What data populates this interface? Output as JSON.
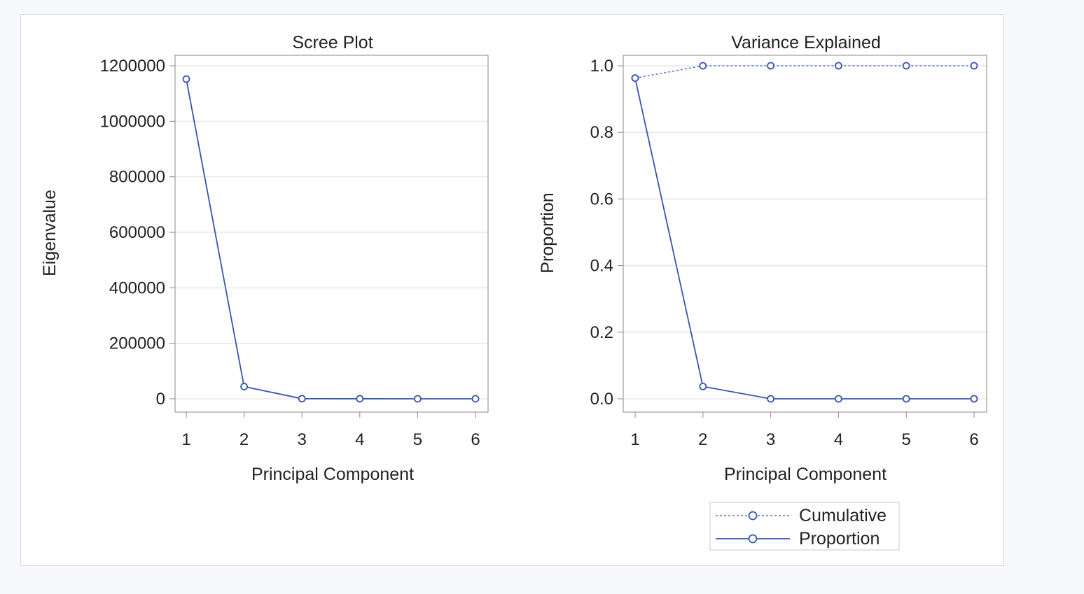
{
  "colors": {
    "series": "#3656b0",
    "cumulative": "#5a78c8",
    "grid": "#e8e8e8",
    "axis": "#888888",
    "text": "#222222"
  },
  "chart_data": [
    {
      "type": "line",
      "title": "Scree Plot",
      "xlabel": "Principal Component",
      "ylabel": "Eigenvalue",
      "x": [
        1,
        2,
        3,
        4,
        5,
        6
      ],
      "xlim": [
        1,
        6
      ],
      "ylim": [
        0,
        1200000
      ],
      "yticks": [
        0,
        200000,
        400000,
        600000,
        800000,
        1000000,
        1200000
      ],
      "grid": true,
      "series": [
        {
          "values": [
            1152000,
            44000,
            500,
            100,
            50,
            20
          ],
          "style": "solid",
          "markers": "circle"
        }
      ]
    },
    {
      "type": "line",
      "title": "Variance Explained",
      "xlabel": "Principal Component",
      "ylabel": "Proportion",
      "x": [
        1,
        2,
        3,
        4,
        5,
        6
      ],
      "xlim": [
        1,
        6
      ],
      "ylim": [
        0,
        1.0
      ],
      "yticks": [
        "0.0",
        "0.2",
        "0.4",
        "0.6",
        "0.8",
        "1.0"
      ],
      "grid": true,
      "legend_position": "bottom",
      "series": [
        {
          "name": "Cumulative",
          "values": [
            0.963,
            1.0,
            1.0,
            1.0,
            1.0,
            1.0
          ],
          "style": "dotted",
          "markers": "circle"
        },
        {
          "name": "Proportion",
          "values": [
            0.963,
            0.037,
            0.0,
            0.0,
            0.0,
            0.0
          ],
          "style": "solid",
          "markers": "circle"
        }
      ]
    }
  ]
}
